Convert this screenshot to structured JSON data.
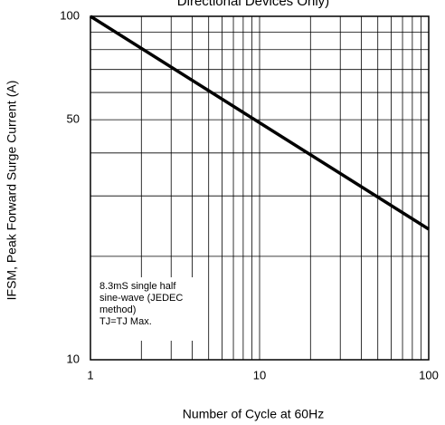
{
  "chart_data": {
    "type": "line",
    "title": "Directional Devices Only)",
    "x_label": "Number of Cycle at 60Hz",
    "y_label": "IFSM, Peak Forward Surge Current (A)",
    "annotation": [
      "8.3mS single half",
      "sine-wave (JEDEC",
      "method)",
      "TJ=TJ Max."
    ],
    "x": [
      1,
      100
    ],
    "series": [
      {
        "color": "#000000",
        "values": [
          100,
          24
        ]
      }
    ],
    "xlim": [
      1,
      100
    ],
    "ylim": [
      10,
      100
    ],
    "xticks": [
      1,
      10,
      100
    ],
    "yticks": [
      10,
      50,
      100
    ],
    "x_minor_grid": [
      2,
      3,
      4,
      5,
      6,
      7,
      8,
      9,
      20,
      30,
      40,
      50,
      60,
      70,
      80,
      90
    ],
    "y_minor_grid": [
      20,
      30,
      40,
      60,
      70,
      80,
      90
    ],
    "xscale": "log",
    "yscale": "log",
    "grid": true
  }
}
